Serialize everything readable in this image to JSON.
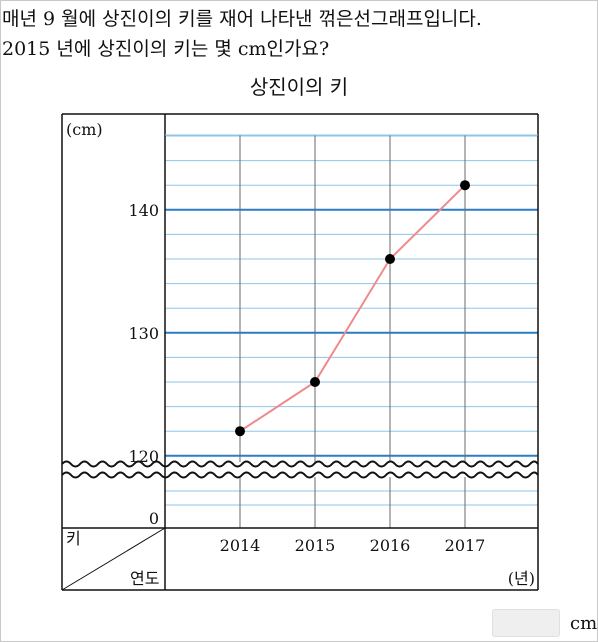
{
  "question": {
    "line1": "매년 9 월에 상진이의 키를 재어 나타낸 꺾은선그래프입니다.",
    "line2": "2015 년에 상진이의 키는 몇 cm인가요?"
  },
  "chart_data": {
    "type": "line",
    "title": "상진이의 키",
    "y_unit": "(cm)",
    "x_unit": "(년)",
    "corner_row_label": "키",
    "corner_col_label": "연도",
    "categories": [
      "2014",
      "2015",
      "2016",
      "2017"
    ],
    "values": [
      122,
      126,
      136,
      142
    ],
    "y_tick_labels": [
      {
        "value": 0,
        "label": "0"
      },
      {
        "value": 120,
        "label": "120"
      },
      {
        "value": 130,
        "label": "130"
      },
      {
        "value": 140,
        "label": "140"
      }
    ],
    "ylim": [
      116,
      146
    ],
    "y_minor_step": 2,
    "y_major_step": 10,
    "axis_break": true,
    "grid": true,
    "colors": {
      "line": "#f08a8a",
      "point": "#000000",
      "major_grid": "#2a7cc4",
      "minor_grid": "#8ec5ea",
      "vertical_grid": "#6a6a6a"
    }
  },
  "answer": {
    "value": "",
    "unit": "cm"
  }
}
